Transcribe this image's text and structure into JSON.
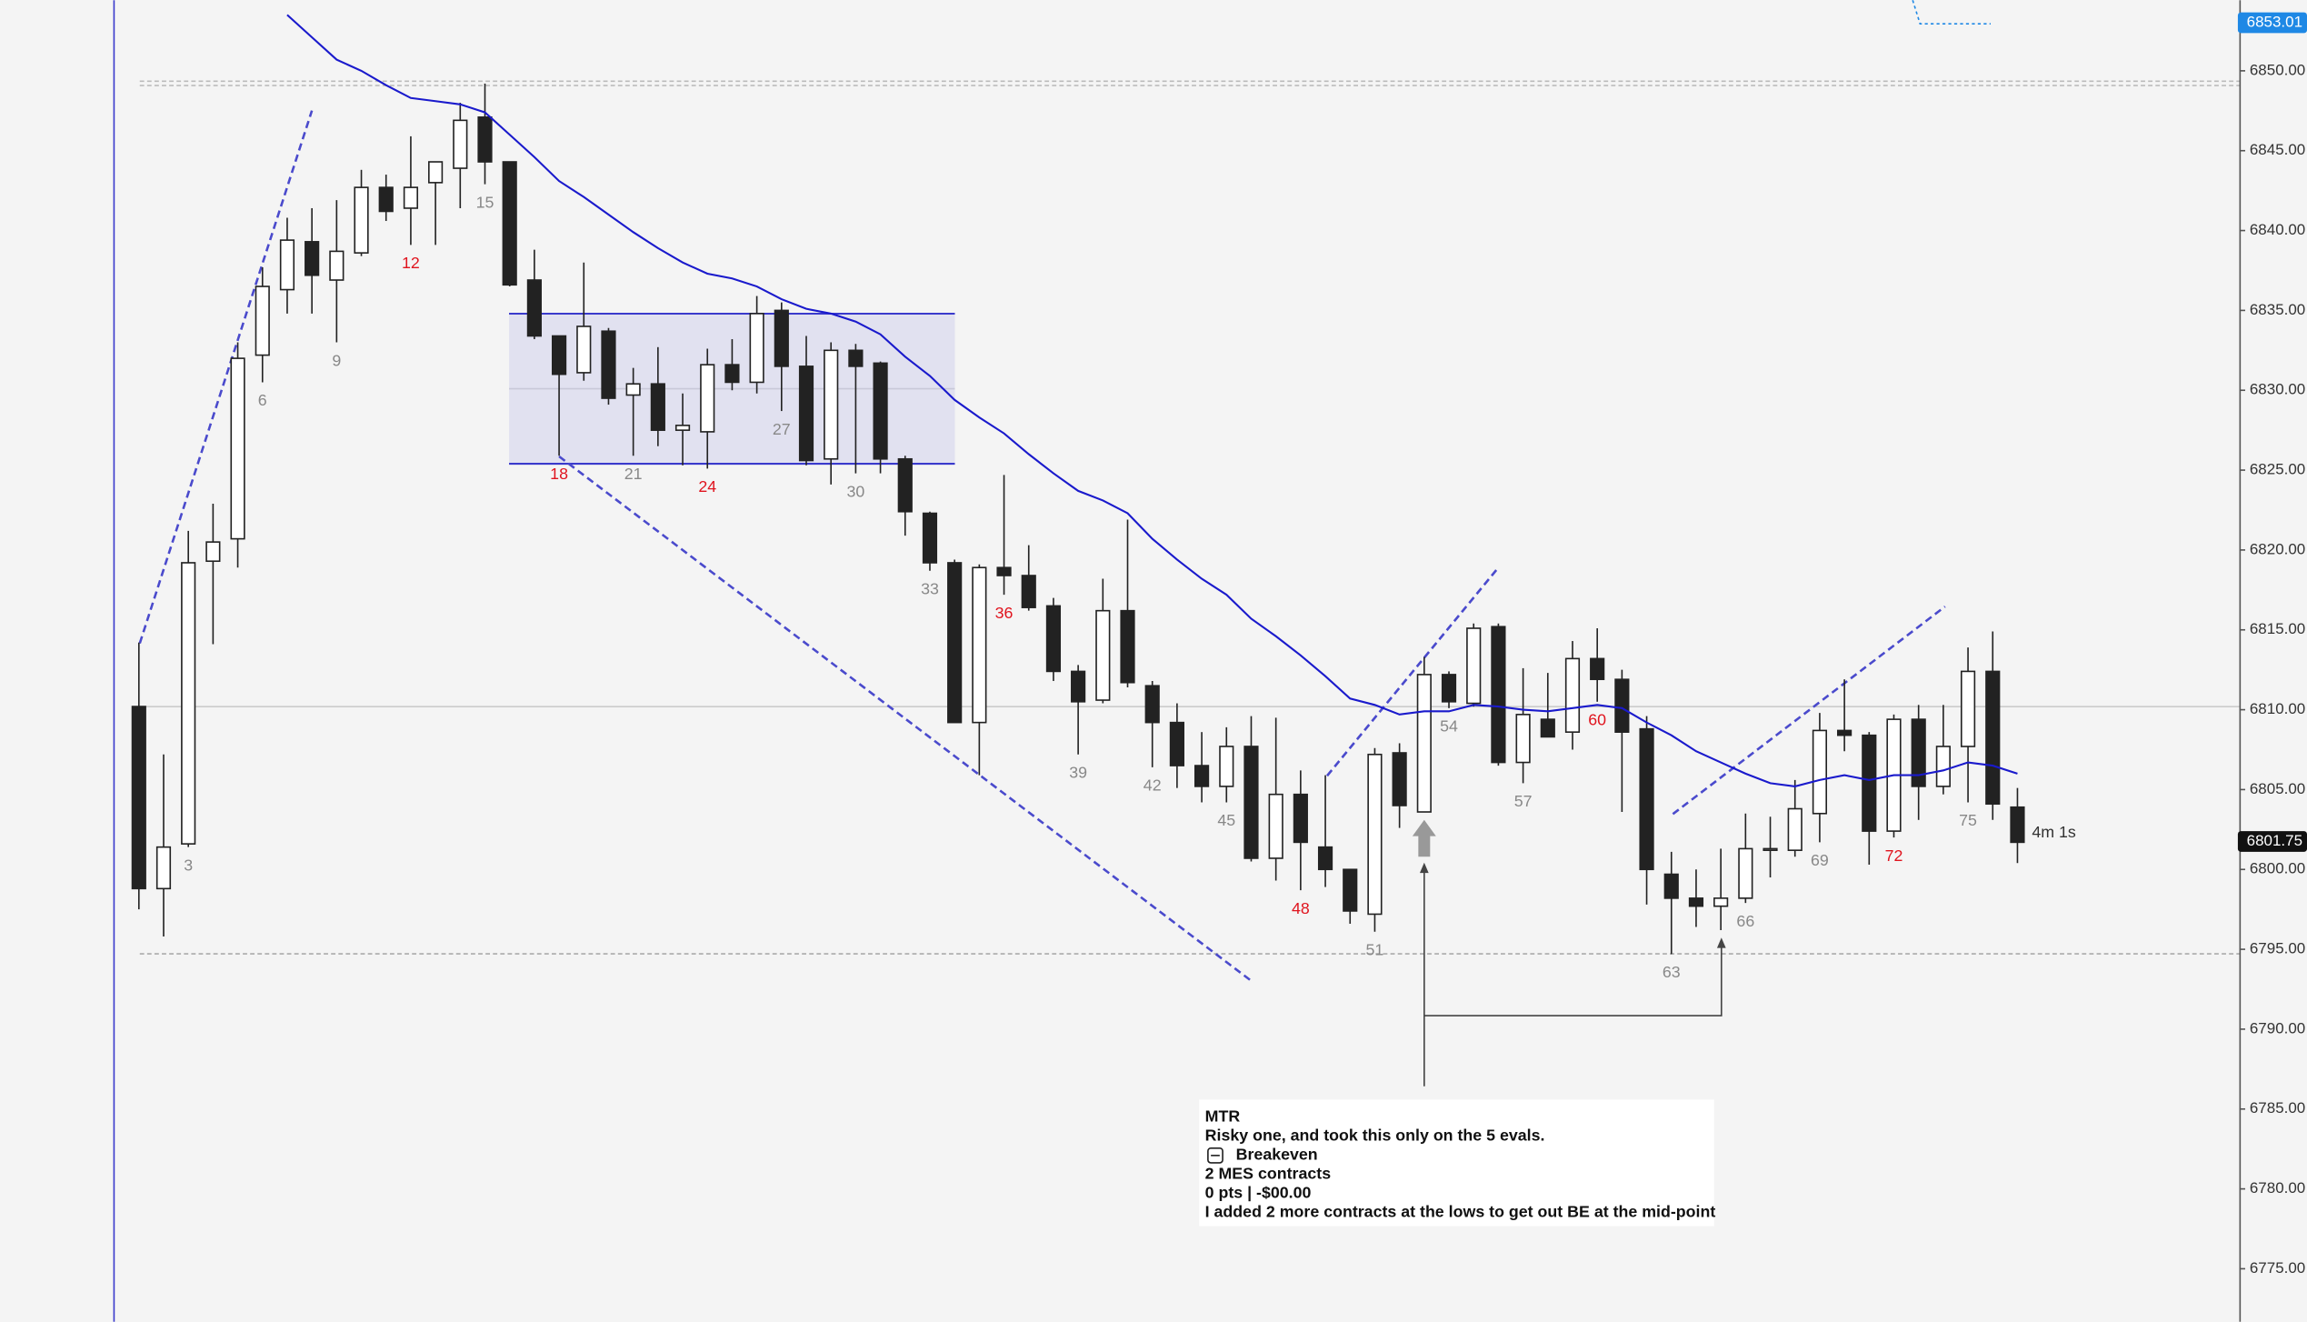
{
  "chart_data": {
    "type": "candlestick",
    "ylim": [
      6771.68,
      6854.42
    ],
    "yticks": [
      {
        "value": 6775,
        "label": "6775.00"
      },
      {
        "value": 6780,
        "label": "6780.00"
      },
      {
        "value": 6785,
        "label": "6785.00"
      },
      {
        "value": 6790,
        "label": "6790.00"
      },
      {
        "value": 6795,
        "label": "6795.00"
      },
      {
        "value": 6800,
        "label": "6800.00"
      },
      {
        "value": 6805,
        "label": "6805.00"
      },
      {
        "value": 6810,
        "label": "6810.00"
      },
      {
        "value": 6815,
        "label": "6815.00"
      },
      {
        "value": 6820,
        "label": "6820.00"
      },
      {
        "value": 6825,
        "label": "6825.00"
      },
      {
        "value": 6830,
        "label": "6830.00"
      },
      {
        "value": 6835,
        "label": "6835.00"
      },
      {
        "value": 6840,
        "label": "6840.00"
      },
      {
        "value": 6845,
        "label": "6845.00"
      },
      {
        "value": 6850,
        "label": "6850.00"
      }
    ],
    "up_color": "#ffffff",
    "down_color": "#222222",
    "wick_color": "#222222",
    "open": [
      6810.2,
      6798.8,
      6801.6,
      6819.3,
      6820.7,
      6832.2,
      6836.3,
      6839.3,
      6836.9,
      6838.6,
      6842.7,
      6841.4,
      6843.0,
      6843.9,
      6847.1,
      6844.3,
      6836.9,
      6833.4,
      6831.1,
      6833.7,
      6829.7,
      6830.4,
      6827.5,
      6827.4,
      6831.6,
      6830.5,
      6835.0,
      6831.5,
      6825.7,
      6832.5,
      6831.7,
      6825.7,
      6822.3,
      6819.2,
      6809.2,
      6818.9,
      6818.4,
      6816.5,
      6812.4,
      6810.6,
      6816.2,
      6811.5,
      6809.2,
      6806.5,
      6805.2,
      6807.7,
      6800.7,
      6804.7,
      6801.4,
      6800.0,
      6797.2,
      6807.3,
      6803.6,
      6812.2,
      6810.4,
      6815.2,
      6806.7,
      6809.4,
      6808.6,
      6813.2,
      6811.9,
      6808.8,
      6799.7,
      6798.2,
      6797.7,
      6798.2,
      6801.2,
      6801.2,
      6803.5,
      6808.7,
      6808.4,
      6802.4,
      6809.4,
      6805.2,
      6807.7,
      6812.4,
      6803.9
    ],
    "high": [
      6814.2,
      6807.2,
      6821.2,
      6822.9,
      6833.0,
      6837.7,
      6840.8,
      6841.4,
      6841.9,
      6843.8,
      6843.5,
      6845.9,
      6844.3,
      6848.0,
      6849.2,
      6844.3,
      6838.8,
      6833.4,
      6838.0,
      6833.9,
      6831.4,
      6832.7,
      6829.8,
      6832.6,
      6833.2,
      6835.9,
      6835.5,
      6833.4,
      6833.0,
      6832.9,
      6831.8,
      6825.9,
      6822.4,
      6819.4,
      6819.1,
      6824.7,
      6820.3,
      6817.0,
      6812.8,
      6818.2,
      6821.9,
      6811.8,
      6810.4,
      6808.6,
      6808.9,
      6809.6,
      6809.5,
      6806.2,
      6805.9,
      6800.0,
      6807.6,
      6807.9,
      6813.3,
      6812.4,
      6815.4,
      6815.4,
      6812.6,
      6812.3,
      6814.3,
      6815.1,
      6812.5,
      6809.6,
      6801.1,
      6800.0,
      6801.3,
      6803.5,
      6803.3,
      6805.6,
      6809.8,
      6811.9,
      6808.6,
      6809.7,
      6810.3,
      6810.3,
      6813.9,
      6814.9,
      6805.1
    ],
    "low": [
      6797.5,
      6795.8,
      6801.4,
      6814.1,
      6818.9,
      6830.5,
      6834.8,
      6834.8,
      6833.0,
      6838.4,
      6840.6,
      6839.1,
      6839.1,
      6841.4,
      6842.9,
      6836.5,
      6833.2,
      6825.9,
      6830.6,
      6829.1,
      6825.9,
      6826.5,
      6825.3,
      6825.1,
      6830.0,
      6829.8,
      6828.7,
      6825.3,
      6824.1,
      6824.8,
      6824.8,
      6820.9,
      6818.7,
      6809.2,
      6805.9,
      6817.2,
      6816.2,
      6811.8,
      6807.2,
      6810.4,
      6811.4,
      6806.4,
      6805.1,
      6804.2,
      6804.2,
      6800.5,
      6799.3,
      6798.7,
      6798.9,
      6796.6,
      6796.1,
      6802.6,
      6803.6,
      6810.1,
      6810.2,
      6806.5,
      6805.4,
      6808.3,
      6807.5,
      6810.5,
      6803.6,
      6797.8,
      6794.7,
      6796.4,
      6796.2,
      6797.9,
      6799.5,
      6800.8,
      6801.7,
      6807.4,
      6800.3,
      6802.0,
      6803.1,
      6804.7,
      6804.2,
      6803.1,
      6800.4
    ],
    "close": [
      6798.8,
      6801.4,
      6819.2,
      6820.5,
      6832.0,
      6836.5,
      6839.4,
      6837.2,
      6838.7,
      6842.7,
      6841.2,
      6842.7,
      6844.3,
      6846.9,
      6844.3,
      6836.6,
      6833.4,
      6831.0,
      6834.0,
      6829.5,
      6830.4,
      6827.5,
      6827.8,
      6831.6,
      6830.5,
      6834.8,
      6831.5,
      6825.6,
      6832.5,
      6831.5,
      6825.7,
      6822.4,
      6819.2,
      6809.2,
      6818.9,
      6818.4,
      6816.4,
      6812.4,
      6810.5,
      6816.2,
      6811.7,
      6809.2,
      6806.5,
      6805.2,
      6807.7,
      6800.7,
      6804.7,
      6801.7,
      6800.0,
      6797.4,
      6807.2,
      6804.0,
      6812.2,
      6810.5,
      6815.1,
      6806.7,
      6809.7,
      6808.3,
      6813.2,
      6811.9,
      6808.6,
      6800.0,
      6798.2,
      6797.7,
      6798.2,
      6801.3,
      6801.3,
      6803.8,
      6808.7,
      6808.4,
      6802.4,
      6809.4,
      6805.2,
      6807.7,
      6812.4,
      6804.1,
      6801.7
    ],
    "ema": {
      "color": "#1a1acc",
      "values": [
        null,
        null,
        null,
        null,
        null,
        null,
        6853.5,
        6852.1,
        6850.7,
        6850.0,
        6849.1,
        6848.3,
        6848.1,
        6847.9,
        6847.4,
        6846.0,
        6844.6,
        6843.1,
        6842.1,
        6841.0,
        6839.9,
        6838.9,
        6838.0,
        6837.3,
        6837.0,
        6836.5,
        6835.7,
        6835.1,
        6834.8,
        6834.3,
        6833.5,
        6832.1,
        6830.9,
        6829.4,
        6828.3,
        6827.3,
        6826.0,
        6824.8,
        6823.7,
        6823.1,
        6822.3,
        6820.7,
        6819.4,
        6818.2,
        6817.2,
        6815.7,
        6814.6,
        6813.4,
        6812.1,
        6810.7,
        6810.3,
        6809.7,
        6809.9,
        6809.9,
        6810.3,
        6810.2,
        6810.0,
        6809.9,
        6810.1,
        6810.3,
        6810.1,
        6809.2,
        6808.4,
        6807.4,
        6806.7,
        6806.0,
        6805.4,
        6805.2,
        6805.6,
        6805.9,
        6805.6,
        6805.9,
        6805.9,
        6806.2,
        6806.7,
        6806.5,
        6806.0
      ]
    },
    "bar_labels": [
      {
        "bar": 3,
        "color": "#888888"
      },
      {
        "bar": 6,
        "color": "#888888"
      },
      {
        "bar": 9,
        "color": "#888888"
      },
      {
        "bar": 12,
        "color": "#e0141e"
      },
      {
        "bar": 15,
        "color": "#888888"
      },
      {
        "bar": 18,
        "color": "#e0141e"
      },
      {
        "bar": 21,
        "color": "#888888"
      },
      {
        "bar": 24,
        "color": "#e0141e"
      },
      {
        "bar": 27,
        "color": "#888888"
      },
      {
        "bar": 30,
        "color": "#888888"
      },
      {
        "bar": 33,
        "color": "#888888"
      },
      {
        "bar": 36,
        "color": "#e0141e"
      },
      {
        "bar": 39,
        "color": "#888888"
      },
      {
        "bar": 42,
        "color": "#888888"
      },
      {
        "bar": 45,
        "color": "#888888"
      },
      {
        "bar": 48,
        "color": "#e0141e"
      },
      {
        "bar": 51,
        "color": "#888888"
      },
      {
        "bar": 54,
        "color": "#888888"
      },
      {
        "bar": 57,
        "color": "#888888"
      },
      {
        "bar": 60,
        "color": "#e0141e"
      },
      {
        "bar": 63,
        "color": "#888888"
      },
      {
        "bar": 66,
        "color": "#888888"
      },
      {
        "bar": 69,
        "color": "#888888"
      },
      {
        "bar": 72,
        "color": "#e0141e"
      },
      {
        "bar": 75,
        "color": "#888888"
      }
    ],
    "price_markers": [
      {
        "value": 6853.01,
        "color": "#1e88e5"
      },
      {
        "value": 6801.75,
        "color": "#111111"
      }
    ],
    "countdown": "4m 1s"
  },
  "annotation": {
    "lines": [
      "MTR",
      "Risky one, and took this only on the 5 evals.",
      "Breakeven",
      "2 MES contracts",
      "0 pts | -$00.00",
      "I added 2 more contracts at the lows to get out BE at the mid-point"
    ]
  }
}
